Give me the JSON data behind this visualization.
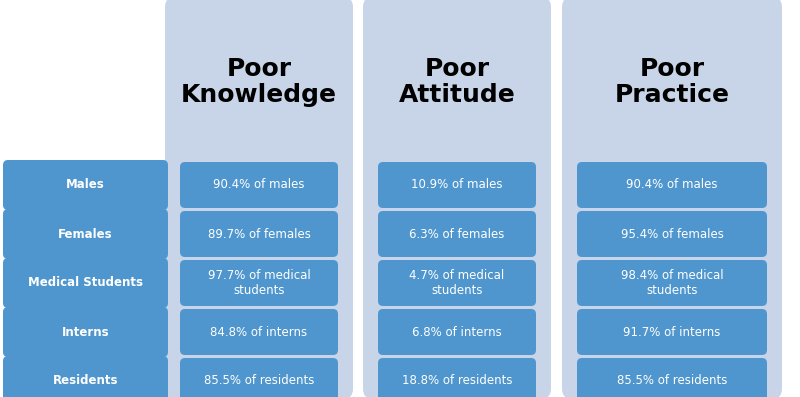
{
  "categories": [
    "Males",
    "Females",
    "Medical Students",
    "Interns",
    "Residents"
  ],
  "columns": [
    {
      "title": "Poor\nKnowledge",
      "values": [
        "90.4% of males",
        "89.7% of females",
        "97.7% of medical\nstudents",
        "84.8% of interns",
        "85.5% of residents"
      ]
    },
    {
      "title": "Poor\nAttitude",
      "values": [
        "10.9% of males",
        "6.3% of females",
        "4.7% of medical\nstudents",
        "6.8% of interns",
        "18.8% of residents"
      ]
    },
    {
      "title": "Poor\nPractice",
      "values": [
        "90.4% of males",
        "95.4% of females",
        "98.4% of medical\nstudents",
        "91.7% of interns",
        "85.5% of residents"
      ]
    }
  ],
  "panel_bg_color": "#c8d4e8",
  "cell_color": "#4f96ce",
  "label_color": "#4f96ce",
  "title_color": "#000000",
  "text_color": "#ffffff",
  "label_text_color": "#ffffff",
  "bg_color": "#ffffff",
  "title_fontsize": 18,
  "cell_fontsize": 8.5,
  "label_fontsize": 8.5
}
